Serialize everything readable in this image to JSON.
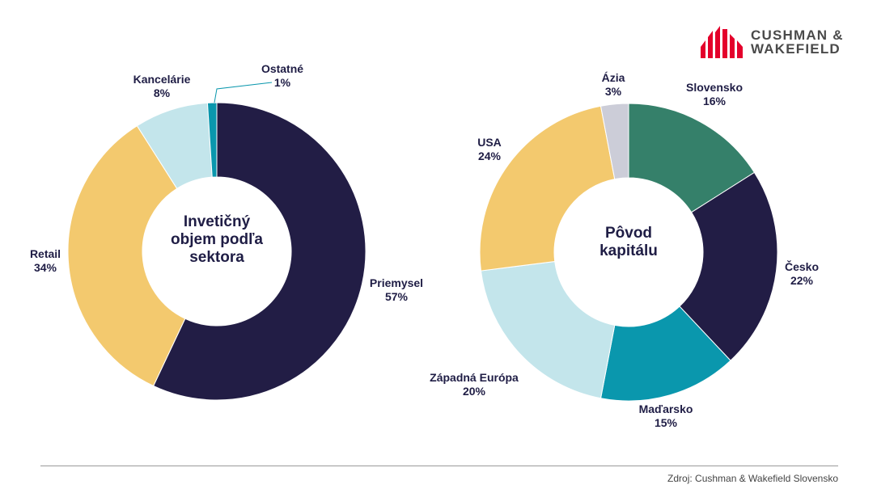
{
  "logo": {
    "line1": "CUSHMAN &",
    "line2": "WAKEFIELD",
    "color": "#e4002b"
  },
  "source": "Zdroj: Cushman & Wakefield Slovensko",
  "chart_data": [
    {
      "type": "pie",
      "donut": true,
      "title": "Invetičný objem podľa sektora",
      "title_lines": [
        "Invetičný",
        "objem podľa",
        "sektora"
      ],
      "categories": [
        "Priemysel",
        "Retail",
        "Kancelárie",
        "Ostatné"
      ],
      "values": [
        57,
        34,
        8,
        1
      ],
      "value_labels": [
        "57%",
        "34%",
        "8%",
        "1%"
      ],
      "colors": [
        "#221d45",
        "#f3c96e",
        "#c3e5eb",
        "#0a97ad"
      ]
    },
    {
      "type": "pie",
      "donut": true,
      "title": "Pôvod kapitálu",
      "title_lines": [
        "Pôvod",
        "kapitálu"
      ],
      "categories": [
        "Slovensko",
        "Česko",
        "Maďarsko",
        "Západná Európa",
        "USA",
        "Ázia"
      ],
      "values": [
        16,
        22,
        15,
        20,
        24,
        3
      ],
      "value_labels": [
        "16%",
        "22%",
        "15%",
        "20%",
        "24%",
        "3%"
      ],
      "colors": [
        "#35806a",
        "#221d45",
        "#0a97ad",
        "#c3e5eb",
        "#f3c96e",
        "#cccdd8"
      ]
    }
  ]
}
